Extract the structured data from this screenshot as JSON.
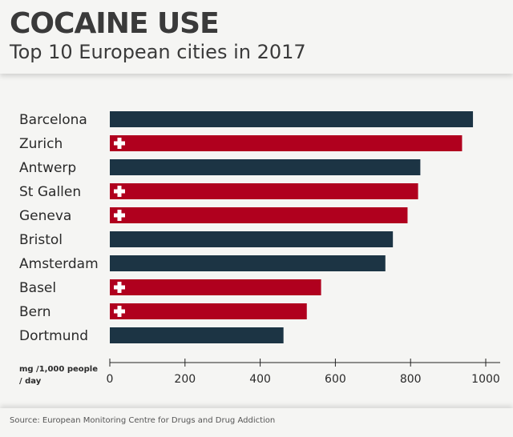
{
  "header": {
    "title": "COCAINE USE",
    "subtitle": "Top 10 European cities in 2017"
  },
  "footer": {
    "source": "Source: European Monitoring Centre for Drugs and Drug Addiction"
  },
  "colors": {
    "default_bar": "#1c3444",
    "swiss_bar": "#b0001e",
    "cross": "#ffffff"
  },
  "chart_data": {
    "type": "bar",
    "orientation": "horizontal",
    "title": "COCAINE USE",
    "subtitle": "Top 10 European cities in 2017",
    "xlabel_lines": [
      "mg /1,000 people",
      "/ day"
    ],
    "xlim": [
      0,
      1000
    ],
    "xticks": [
      0,
      200,
      400,
      600,
      800,
      1000
    ],
    "grid": false,
    "categories": [
      "Barcelona",
      "Zurich",
      "Antwerp",
      "St Gallen",
      "Geneva",
      "Bristol",
      "Amsterdam",
      "Basel",
      "Bern",
      "Dortmund"
    ],
    "values": [
      966,
      937,
      826,
      820,
      792,
      753,
      733,
      562,
      524,
      462
    ],
    "swiss_marker": [
      false,
      true,
      false,
      true,
      true,
      false,
      false,
      true,
      true,
      false
    ],
    "marker_icon": "swiss-cross-icon"
  }
}
